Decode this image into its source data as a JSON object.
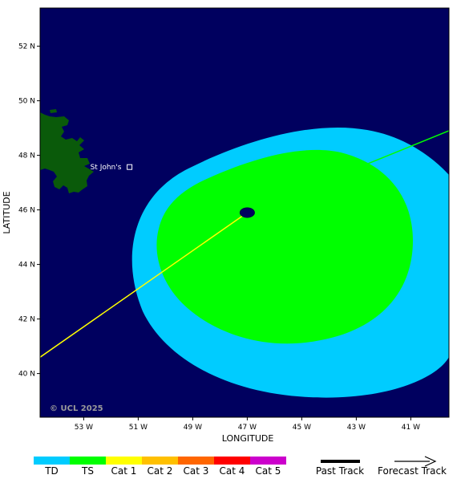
{
  "map": {
    "axes": {
      "xlabel": "LONGITUDE",
      "ylabel": "LATITUDE",
      "lon_ticks": [
        {
          "value": -53,
          "label": "53 W"
        },
        {
          "value": -51,
          "label": "51 W"
        },
        {
          "value": -49,
          "label": "49 W"
        },
        {
          "value": -47,
          "label": "47 W"
        },
        {
          "value": -45,
          "label": "45 W"
        },
        {
          "value": -43,
          "label": "43 W"
        },
        {
          "value": -41,
          "label": "41 W"
        }
      ],
      "lat_ticks": [
        {
          "value": 40,
          "label": "40 N"
        },
        {
          "value": 42,
          "label": "42 N"
        },
        {
          "value": 44,
          "label": "44 N"
        },
        {
          "value": 46,
          "label": "46 N"
        },
        {
          "value": 48,
          "label": "48 N"
        },
        {
          "value": 50,
          "label": "50 N"
        },
        {
          "value": 52,
          "label": "52 N"
        }
      ],
      "lon_range": [
        -54.6,
        -39.6
      ],
      "lat_range": [
        38.4,
        53.4
      ]
    },
    "city": {
      "name": "St John's",
      "lon": -52.7,
      "lat": 47.6
    },
    "storm_center": {
      "lon": -47.0,
      "lat": 45.9
    },
    "past_track": [
      [
        -54.6,
        40.6
      ],
      [
        -47.0,
        45.9
      ]
    ],
    "forecast_track": [
      [
        -47.0,
        45.9
      ],
      [
        -39.6,
        48.9
      ]
    ],
    "colors": {
      "ocean": "#00005f",
      "land": "#0a5a0a",
      "TD": "#00ccff",
      "TS": "#00ff00",
      "Cat 1": "#ffff00",
      "Cat 2": "#ffc000",
      "Cat 3": "#ff6600",
      "Cat 4": "#ff0000",
      "Cat 5": "#cc00cc",
      "past_track_line": "#ffff00",
      "forecast_track_line": "#00ff00"
    },
    "copyright": "© UCL 2025"
  },
  "legend": {
    "categories": [
      "TD",
      "TS",
      "Cat 1",
      "Cat 2",
      "Cat 3",
      "Cat 4",
      "Cat 5"
    ],
    "past_track_label": "Past Track",
    "forecast_track_label": "Forecast Track"
  }
}
